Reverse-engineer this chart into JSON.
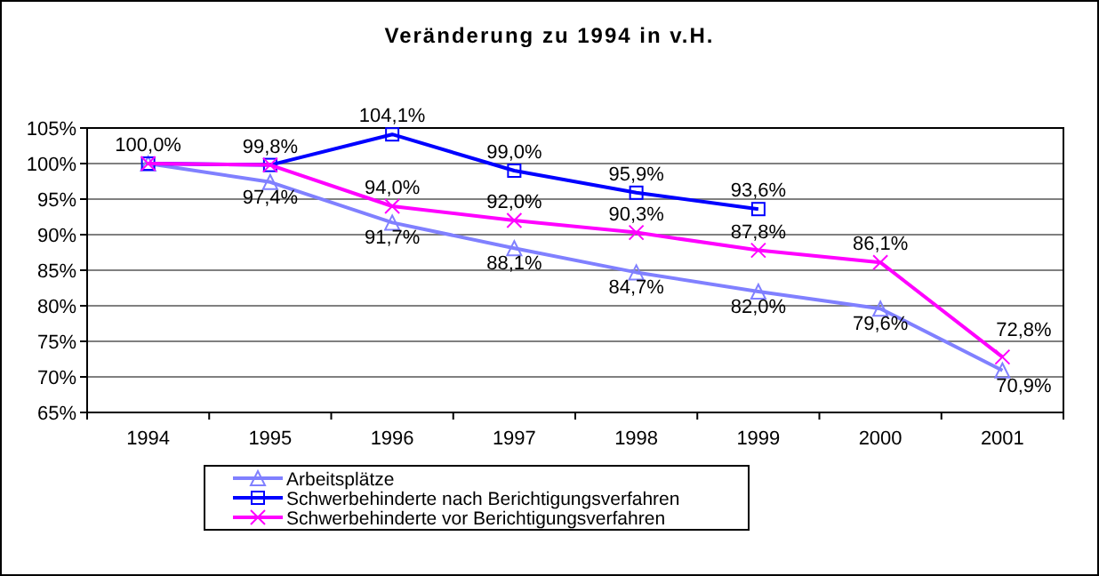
{
  "chart_data": {
    "type": "line",
    "title": "Veränderung zu 1994 in v.H.",
    "categories": [
      "1994",
      "1995",
      "1996",
      "1997",
      "1998",
      "1999",
      "2000",
      "2001"
    ],
    "ylim": [
      65,
      105
    ],
    "yticks": [
      {
        "value": 65,
        "label": "65%"
      },
      {
        "value": 70,
        "label": "70%"
      },
      {
        "value": 75,
        "label": "75%"
      },
      {
        "value": 80,
        "label": "80%"
      },
      {
        "value": 85,
        "label": "85%"
      },
      {
        "value": 90,
        "label": "90%"
      },
      {
        "value": 95,
        "label": "95%"
      },
      {
        "value": 100,
        "label": "100%"
      },
      {
        "value": 105,
        "label": "105%"
      }
    ],
    "grid": "y",
    "legend": "bottom",
    "series": [
      {
        "name": "Arbeitsplätze",
        "color": "#8080ff",
        "marker": "triangle",
        "values": [
          100.0,
          97.4,
          91.7,
          88.1,
          84.7,
          82.0,
          79.6,
          70.9
        ],
        "value_labels": [
          null,
          "97,4%",
          "91,7%",
          "88,1%",
          "84,7%",
          "82,0%",
          "79,6%",
          "70,9%"
        ]
      },
      {
        "name": "Schwerbehinderte nach Berichtigungsverfahren",
        "color": "#0000ff",
        "marker": "square",
        "values": [
          100.0,
          99.8,
          104.1,
          99.0,
          95.9,
          93.6,
          null,
          null
        ],
        "value_labels": [
          "100,0%",
          "99,8%",
          "104,1%",
          "99,0%",
          "95,9%",
          "93,6%",
          null,
          null
        ]
      },
      {
        "name": "Schwerbehinderte vor Berichtigungsverfahren",
        "color": "#ff00ff",
        "marker": "cross",
        "values": [
          100.0,
          99.8,
          94.0,
          92.0,
          90.3,
          87.8,
          86.1,
          72.8
        ],
        "value_labels": [
          null,
          null,
          "94,0%",
          "92,0%",
          "90,3%",
          "87,8%",
          "86,1%",
          "72,8%"
        ]
      }
    ]
  }
}
